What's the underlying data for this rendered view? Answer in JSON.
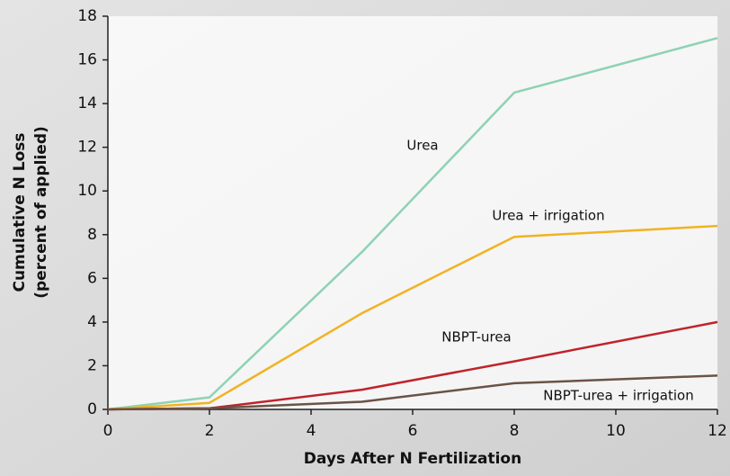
{
  "chart_data": {
    "type": "line",
    "xlabel": "Days After N Fertilization",
    "ylabel": [
      "Cumulative N Loss",
      "(percent of applied)"
    ],
    "x": [
      0,
      2,
      5,
      8,
      12
    ],
    "series": [
      {
        "name": "Urea",
        "color": "#8ed2b4",
        "values": [
          0,
          0.55,
          7.2,
          14.5,
          17
        ]
      },
      {
        "name": "Urea + irrigation",
        "color": "#f0b323",
        "values": [
          0,
          0.3,
          4.4,
          7.9,
          8.4
        ]
      },
      {
        "name": "NBPT-urea",
        "color": "#c0232b",
        "values": [
          0,
          0.05,
          0.9,
          2.2,
          4
        ]
      },
      {
        "name": "NBPT-urea + irrigation",
        "color": "#6b5346",
        "values": [
          0,
          0.05,
          0.35,
          1.2,
          1.55
        ]
      }
    ],
    "xlim": [
      0,
      12
    ],
    "xticks": [
      0,
      2,
      4,
      6,
      8,
      10,
      12
    ],
    "ylim": [
      0,
      18
    ],
    "yticks": [
      0,
      2,
      4,
      6,
      8,
      10,
      12,
      14,
      16,
      18
    ]
  }
}
